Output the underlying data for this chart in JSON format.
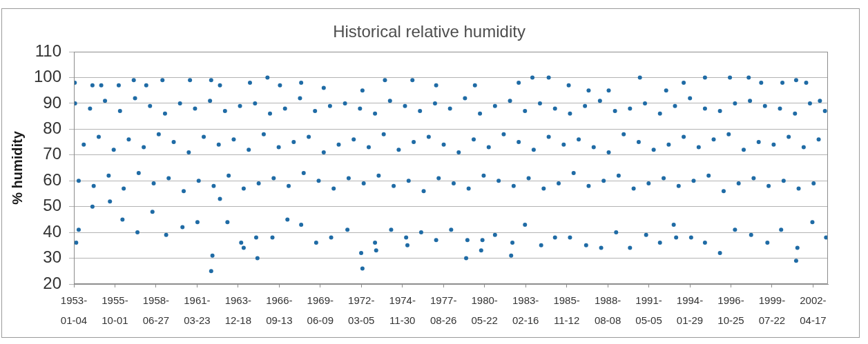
{
  "chart_data": {
    "type": "scatter",
    "title": "Historical relative humidity",
    "ylabel": "% humidity",
    "color": "#1f6ba5",
    "marker": "circle",
    "grid": "y",
    "xlim": [
      "1953-01-04",
      "2003-04-15"
    ],
    "xticks": [
      "1953-01-04",
      "1955-10-01",
      "1958-06-27",
      "1961-03-23",
      "1963-12-18",
      "1966-09-13",
      "1969-06-09",
      "1972-03-05",
      "1974-11-30",
      "1977-08-26",
      "1980-05-22",
      "1983-02-16",
      "1985-11-12",
      "1988-08-08",
      "1991-05-05",
      "1994-01-29",
      "1996-10-25",
      "1999-07-22",
      "2002-04-17"
    ],
    "ylim": [
      20,
      110
    ],
    "yticks": [
      20,
      30,
      40,
      50,
      60,
      70,
      80,
      90,
      100,
      110
    ],
    "x": [
      "1953-02",
      "1953-05",
      "1953-09",
      "1954-02",
      "1954-05",
      "1954-09",
      "1955-02",
      "1955-05",
      "1955-09",
      "1956-02",
      "1956-05",
      "1956-09",
      "1957-02",
      "1957-05",
      "1957-09",
      "1958-02",
      "1958-05",
      "1958-09",
      "1959-02",
      "1959-05",
      "1959-09",
      "1960-02",
      "1960-05",
      "1960-09",
      "1961-02",
      "1961-05",
      "1961-09",
      "1962-02",
      "1962-05",
      "1962-09",
      "1963-02",
      "1963-05",
      "1963-09",
      "1964-02",
      "1964-05",
      "1964-09",
      "1965-02",
      "1965-05",
      "1965-09",
      "1966-02",
      "1966-05",
      "1966-09",
      "1967-02",
      "1967-05",
      "1967-09",
      "1968-02",
      "1968-05",
      "1968-09",
      "1969-02",
      "1969-05",
      "1969-09",
      "1970-02",
      "1970-05",
      "1970-09",
      "1971-02",
      "1971-05",
      "1971-09",
      "1972-02",
      "1972-05",
      "1972-09",
      "1973-02",
      "1973-05",
      "1973-09",
      "1974-02",
      "1974-05",
      "1974-09",
      "1975-02",
      "1975-05",
      "1975-09",
      "1976-02",
      "1976-05",
      "1976-09",
      "1977-02",
      "1977-05",
      "1977-09",
      "1978-02",
      "1978-05",
      "1978-09",
      "1979-02",
      "1979-05",
      "1979-09",
      "1980-02",
      "1980-05",
      "1980-09",
      "1981-02",
      "1981-05",
      "1981-09",
      "1982-02",
      "1982-05",
      "1982-09",
      "1983-02",
      "1983-05",
      "1983-09",
      "1984-02",
      "1984-05",
      "1984-09",
      "1985-02",
      "1985-05",
      "1985-09",
      "1986-02",
      "1986-05",
      "1986-09",
      "1987-02",
      "1987-05",
      "1987-09",
      "1988-02",
      "1988-05",
      "1988-09",
      "1989-02",
      "1989-05",
      "1989-09",
      "1990-02",
      "1990-05",
      "1990-09",
      "1991-02",
      "1991-05",
      "1991-09",
      "1992-02",
      "1992-05",
      "1992-09",
      "1993-02",
      "1993-05",
      "1993-09",
      "1994-02",
      "1994-05",
      "1994-09",
      "1995-02",
      "1995-05",
      "1995-09",
      "1996-02",
      "1996-05",
      "1996-09",
      "1997-02",
      "1997-05",
      "1997-09",
      "1998-02",
      "1998-05",
      "1998-09",
      "1999-02",
      "1999-05",
      "1999-09",
      "2000-02",
      "2000-05",
      "2000-09",
      "2001-02",
      "2001-05",
      "2001-09",
      "2002-02",
      "2002-05",
      "2002-09",
      "2003-02",
      "1953-03",
      "1953-05",
      "1954-04",
      "1955-06",
      "1956-04",
      "1957-04",
      "1958-04",
      "1959-03",
      "1960-04",
      "1961-04",
      "1962-03",
      "1962-04",
      "1962-10",
      "1963-04",
      "1964-03",
      "1964-05",
      "1965-04",
      "1965-03",
      "1966-04",
      "1967-04",
      "1968-03",
      "1969-03",
      "1970-03",
      "1971-04",
      "1972-04",
      "1972-03",
      "1973-03",
      "1973-02",
      "1974-03",
      "1975-04",
      "1975-03",
      "1976-03",
      "1977-03",
      "1978-03",
      "1979-03",
      "1979-04",
      "1980-03",
      "1980-04",
      "1981-02",
      "1982-03",
      "1982-04",
      "1983-02",
      "1984-03",
      "1985-02",
      "1986-02",
      "1987-03",
      "1988-03",
      "1989-03",
      "1990-02",
      "1991-03",
      "1992-02",
      "1993-01",
      "1993-03",
      "1994-03",
      "1995-02",
      "1996-02",
      "1997-02",
      "1998-03",
      "1999-04",
      "2000-03",
      "2001-03",
      "2001-04",
      "2002-04",
      "2003-03",
      "1953-01-25",
      "1954-04",
      "1954-11",
      "1956-01",
      "1957-01",
      "1957-11",
      "1958-12",
      "1960-10",
      "1962-03",
      "1962-10",
      "1964-10",
      "1965-12",
      "1966-10",
      "1968-03",
      "1969-09",
      "1972-04",
      "1973-10",
      "1975-08",
      "1977-03",
      "1979-10",
      "1982-09",
      "1983-08",
      "1984-09",
      "1986-01",
      "1987-05",
      "1988-09",
      "1990-10",
      "1992-07",
      "1993-09",
      "1995-02",
      "1996-10",
      "1998-01",
      "1998-11",
      "2000-04",
      "2001-03",
      "2001-11",
      "2002-10"
    ],
    "values": [
      90,
      60,
      74,
      88,
      58,
      77,
      91,
      62,
      72,
      87,
      57,
      76,
      92,
      63,
      73,
      89,
      59,
      78,
      86,
      61,
      75,
      90,
      56,
      71,
      88,
      60,
      77,
      91,
      58,
      74,
      87,
      62,
      76,
      89,
      57,
      72,
      90,
      59,
      78,
      86,
      61,
      73,
      88,
      58,
      75,
      92,
      63,
      77,
      87,
      60,
      71,
      89,
      57,
      74,
      90,
      61,
      76,
      88,
      59,
      73,
      86,
      62,
      78,
      91,
      58,
      72,
      89,
      60,
      75,
      87,
      56,
      77,
      90,
      61,
      74,
      88,
      59,
      71,
      92,
      57,
      76,
      86,
      62,
      73,
      89,
      60,
      78,
      91,
      58,
      75,
      87,
      61,
      72,
      90,
      57,
      77,
      88,
      59,
      74,
      86,
      63,
      76,
      89,
      58,
      73,
      91,
      60,
      71,
      87,
      62,
      78,
      88,
      57,
      75,
      90,
      59,
      72,
      86,
      61,
      74,
      89,
      58,
      77,
      92,
      60,
      73,
      88,
      62,
      76,
      87,
      56,
      78,
      90,
      59,
      72,
      91,
      61,
      75,
      89,
      58,
      74,
      88,
      60,
      77,
      86,
      57,
      73,
      90,
      59,
      76,
      87,
      36,
      41,
      50,
      52,
      45,
      40,
      48,
      39,
      42,
      44,
      25,
      31,
      53,
      44,
      36,
      34,
      30,
      38,
      38,
      45,
      43,
      36,
      38,
      41,
      26,
      32,
      33,
      36,
      41,
      35,
      38,
      40,
      37,
      41,
      30,
      37,
      33,
      37,
      39,
      31,
      36,
      43,
      35,
      38,
      38,
      35,
      34,
      40,
      34,
      39,
      36,
      43,
      38,
      38,
      36,
      32,
      41,
      39,
      36,
      41,
      29,
      34,
      44,
      38,
      98,
      97,
      97,
      97,
      99,
      97,
      99,
      99,
      99,
      97,
      98,
      100,
      97,
      98,
      96,
      95,
      99,
      99,
      97,
      97,
      98,
      100,
      100,
      97,
      95,
      95,
      100,
      95,
      98,
      100,
      100,
      100,
      98,
      98,
      99,
      98,
      91
    ]
  }
}
